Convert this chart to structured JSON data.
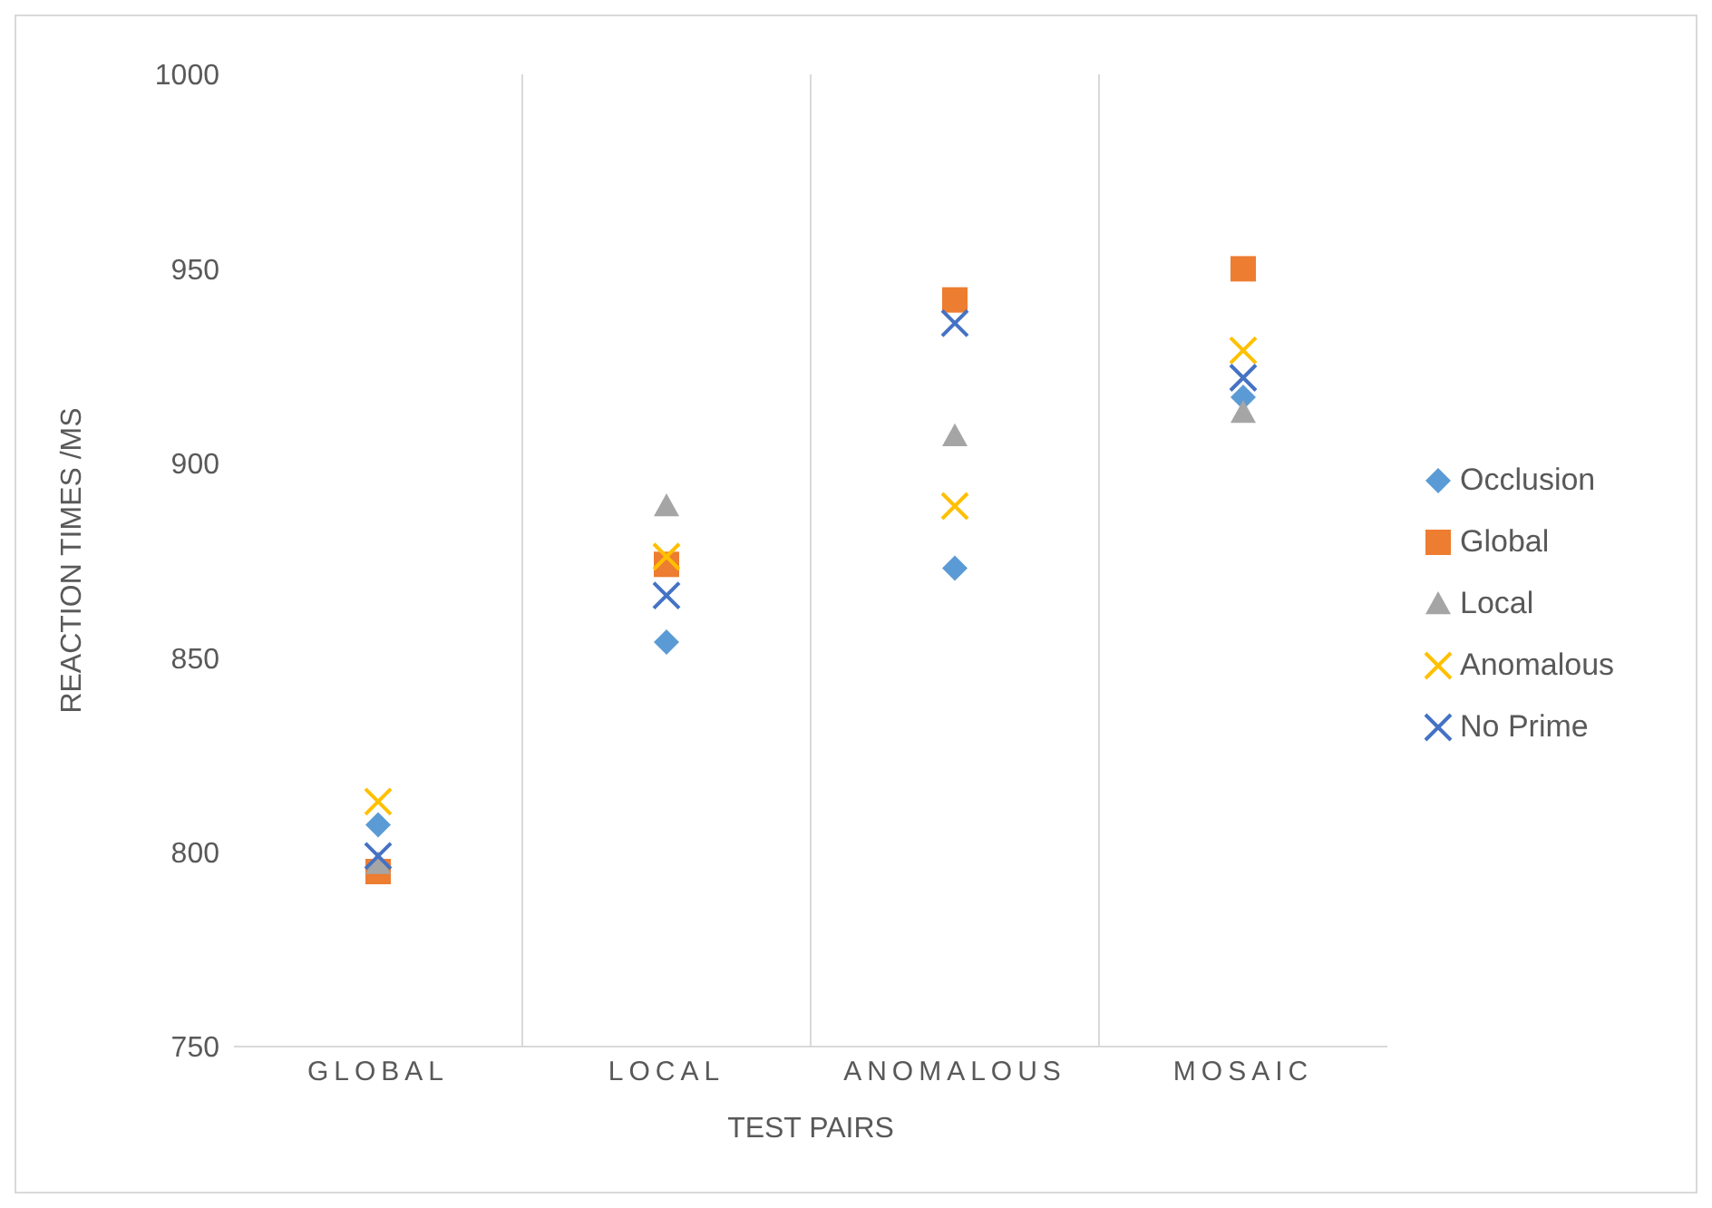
{
  "chart_data": {
    "type": "scatter",
    "xlabel": "TEST PAIRS",
    "ylabel": "REACTION TIMES /MS",
    "categories": [
      "GLOBAL",
      "LOCAL",
      "ANOMALOUS",
      "MOSAIC"
    ],
    "series": [
      {
        "name": "Occlusion",
        "color": "#5b9bd5",
        "marker": "diamond",
        "values": [
          807,
          854,
          873,
          917
        ]
      },
      {
        "name": "Global",
        "color": "#ed7d31",
        "marker": "square",
        "values": [
          795,
          874,
          942,
          950
        ]
      },
      {
        "name": "Local",
        "color": "#a5a5a5",
        "marker": "triangle",
        "values": [
          797,
          889,
          907,
          913
        ]
      },
      {
        "name": "Anomalous",
        "color": "#ffc000",
        "marker": "cross",
        "values": [
          813,
          876,
          889,
          929
        ]
      },
      {
        "name": "No Prime",
        "color": "#4472c4",
        "marker": "cross",
        "values": [
          799,
          866,
          936,
          922
        ]
      }
    ],
    "ylim": [
      750,
      1000
    ],
    "yticks": [
      750,
      800,
      850,
      900,
      950,
      1000
    ],
    "grid": "x",
    "legend": "right"
  }
}
